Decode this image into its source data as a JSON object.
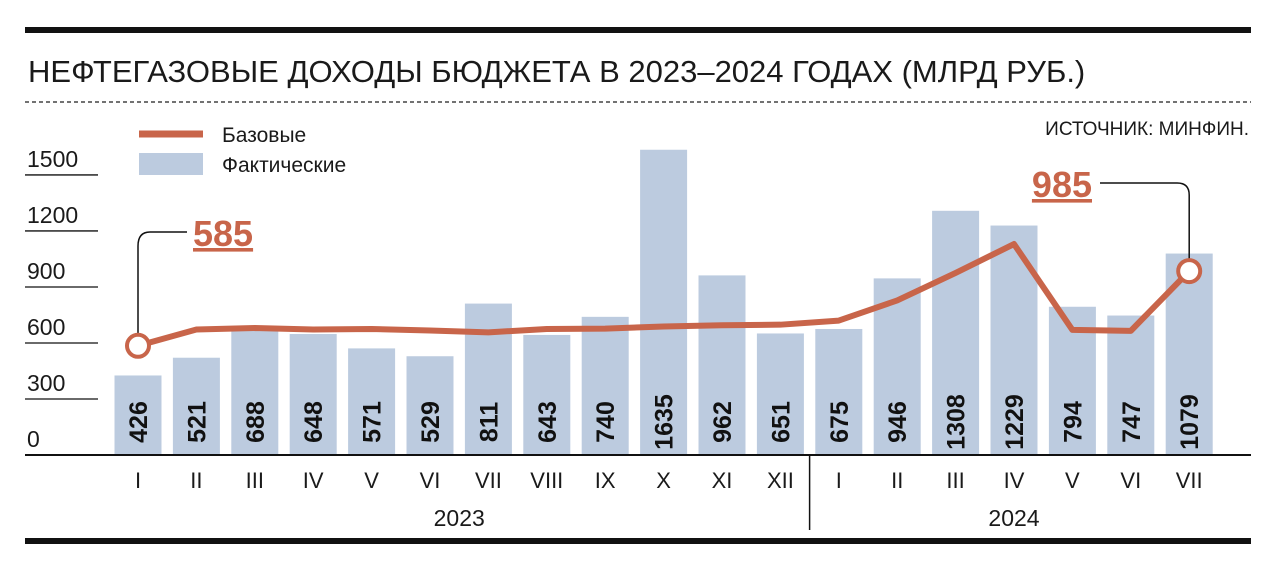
{
  "title": "НЕФТЕГАЗОВЫЕ ДОХОДЫ БЮДЖЕТА В 2023–2024 ГОДАХ (МЛРД РУБ.)",
  "source": "ИСТОЧНИК: МИНФИН.",
  "colors": {
    "bar": "#bccbdf",
    "line": "#c8654a",
    "text": "#1a1a1a",
    "rule": "#111111"
  },
  "chart_data": {
    "type": "bar",
    "title": "НЕФТЕГАЗОВЫЕ ДОХОДЫ БЮДЖЕТА В 2023–2024 ГОДАХ (МЛРД РУБ.)",
    "categories": [
      "I",
      "II",
      "III",
      "IV",
      "V",
      "VI",
      "VII",
      "VIII",
      "IX",
      "X",
      "XI",
      "XII",
      "I",
      "II",
      "III",
      "IV",
      "V",
      "VI",
      "VII"
    ],
    "years": [
      {
        "label": "2023",
        "from": 0,
        "to": 11
      },
      {
        "label": "2024",
        "from": 12,
        "to": 18
      }
    ],
    "yticks": [
      0,
      300,
      600,
      900,
      1200,
      1500
    ],
    "ylim": [
      0,
      1600
    ],
    "series": [
      {
        "name": "Фактические",
        "type": "bar",
        "values": [
          426,
          521,
          688,
          648,
          571,
          529,
          811,
          643,
          740,
          1635,
          962,
          651,
          675,
          946,
          1308,
          1229,
          794,
          747,
          1079
        ]
      },
      {
        "name": "Базовые",
        "type": "line",
        "values": [
          585,
          672,
          680,
          672,
          675,
          667,
          657,
          675,
          677,
          688,
          695,
          698,
          720,
          828,
          975,
          1130,
          670,
          665,
          985
        ]
      }
    ],
    "annotations": [
      {
        "text": "585",
        "index": 0
      },
      {
        "text": "985",
        "index": 18
      }
    ],
    "legend": "top-left",
    "grid": false
  }
}
